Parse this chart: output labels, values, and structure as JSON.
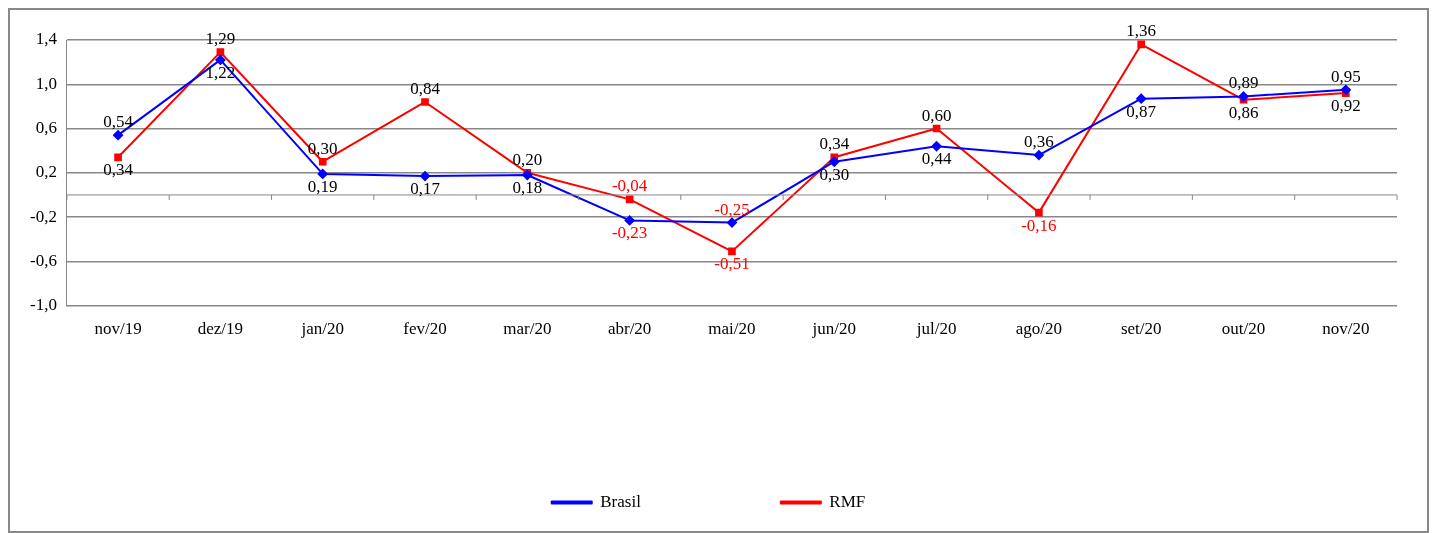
{
  "chart_data": {
    "type": "line",
    "categories": [
      "nov/19",
      "dez/19",
      "jan/20",
      "fev/20",
      "mar/20",
      "abr/20",
      "mai/20",
      "jun/20",
      "jul/20",
      "ago/20",
      "set/20",
      "out/20",
      "nov/20"
    ],
    "series": [
      {
        "name": "Brasil",
        "color": "#0000ff",
        "marker": "diamond",
        "values": [
          0.54,
          1.22,
          0.19,
          0.17,
          0.18,
          -0.23,
          -0.25,
          0.3,
          0.44,
          0.36,
          0.87,
          0.89,
          0.95
        ],
        "value_labels": [
          "0,54",
          "1,22",
          "0,19",
          "0,17",
          "0,18",
          "-0,23",
          "-0,25",
          "0,30",
          "0,44",
          "0,36",
          "0,87",
          "0,89",
          "0,95"
        ]
      },
      {
        "name": "RMF",
        "color": "#ff0000",
        "marker": "square",
        "values": [
          0.34,
          1.29,
          0.3,
          0.84,
          0.2,
          -0.04,
          -0.51,
          0.34,
          0.6,
          -0.16,
          1.36,
          0.86,
          0.92
        ],
        "value_labels": [
          "0,34",
          "1,29",
          "0,30",
          "0,84",
          "0,20",
          "-0,04",
          "-0,51",
          "0,34",
          "0,60",
          "-0,16",
          "1,36",
          "0,86",
          "0,92"
        ]
      }
    ],
    "ylim": [
      -1.0,
      1.4
    ],
    "yticks": [
      {
        "value": -1.0,
        "label": "-1,0"
      },
      {
        "value": -0.6,
        "label": "-0,6"
      },
      {
        "value": -0.2,
        "label": "-0,2"
      },
      {
        "value": 0.2,
        "label": "0,2"
      },
      {
        "value": 0.6,
        "label": "0,6"
      },
      {
        "value": 1.0,
        "label": "1,0"
      },
      {
        "value": 1.4,
        "label": "1,4"
      }
    ],
    "grid": "y",
    "legend": "bottom"
  }
}
